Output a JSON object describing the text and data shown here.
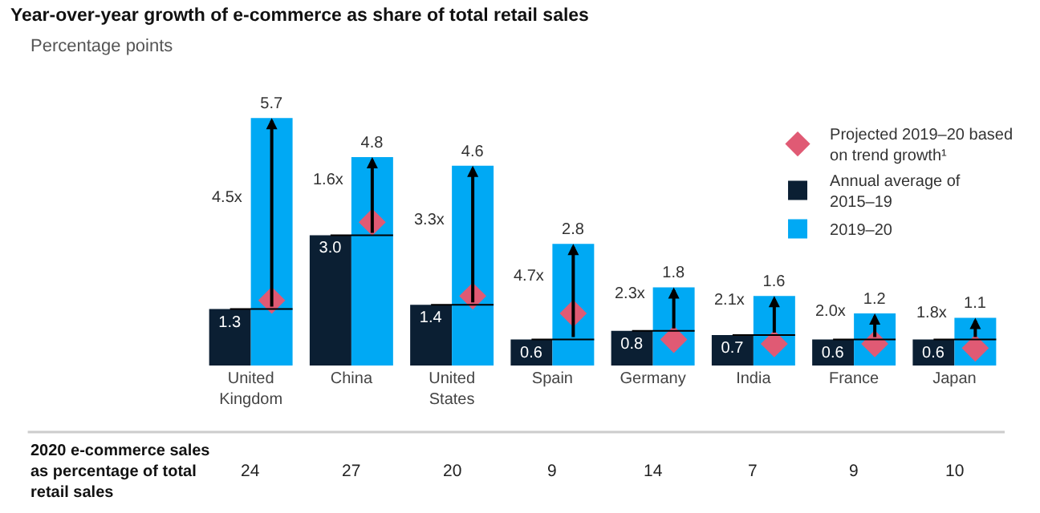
{
  "chart_data": {
    "type": "bar",
    "title": "Year-over-year growth of e-commerce as share of total retail sales",
    "subtitle": "Percentage points",
    "categories": [
      "United Kingdom",
      "China",
      "United States",
      "Spain",
      "Germany",
      "India",
      "France",
      "Japan"
    ],
    "series": [
      {
        "name": "Projected 2019–20 based on trend growth¹",
        "type": "scatter",
        "color": "#e05a74",
        "values": [
          1.5,
          3.3,
          1.6,
          1.2,
          0.6,
          0.5,
          0.5,
          0.4
        ]
      },
      {
        "name": "Annual average of 2015–19",
        "color": "#0b1f33",
        "values": [
          1.3,
          3.0,
          1.4,
          0.6,
          0.8,
          0.7,
          0.6,
          0.6
        ],
        "value_labels": [
          "1.3",
          "3.0",
          "1.4",
          "0.6",
          "0.8",
          "0.7",
          "0.6",
          "0.6"
        ]
      },
      {
        "name": "2019–20",
        "color": "#00a9f4",
        "values": [
          5.7,
          4.8,
          4.6,
          2.8,
          1.8,
          1.6,
          1.2,
          1.1
        ],
        "value_labels": [
          "5.7",
          "4.8",
          "4.6",
          "2.8",
          "1.8",
          "1.6",
          "1.2",
          "1.1"
        ]
      }
    ],
    "marker": "diamond",
    "legend": "top right",
    "grid": false,
    "annotations": [
      "4.5x",
      "1.6x",
      "3.3x",
      "4.7x",
      "2.3x",
      "2.1x",
      "2.0x",
      "1.8x",
      "2020 e-commerce sales as percentage of total retail sales",
      "24",
      "27",
      "20",
      "9",
      "14",
      "7",
      "9",
      "10"
    ]
  }
}
